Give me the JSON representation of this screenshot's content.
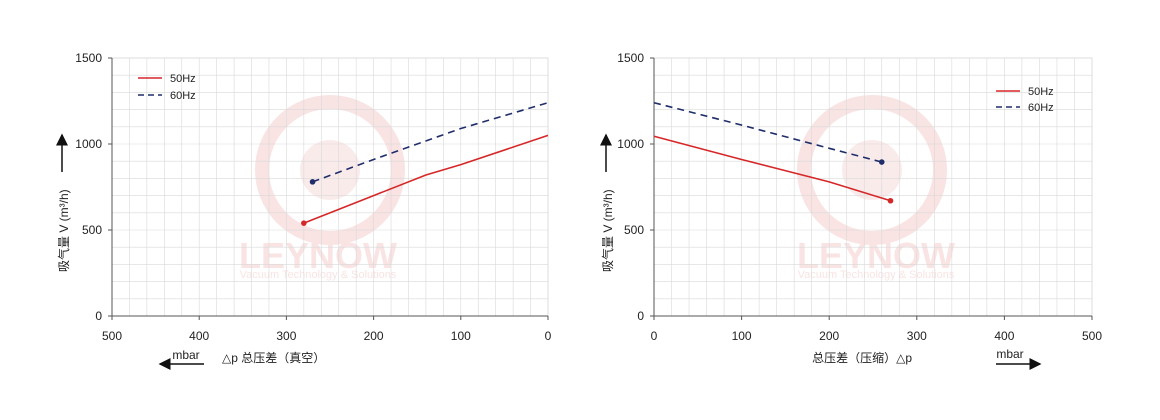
{
  "colors": {
    "50hz": "#d62728",
    "60hz": "#1f2d6b",
    "grid": "#d9d9d9",
    "axis": "#555555",
    "watermark": "#f4c9c9"
  },
  "watermark": {
    "brand": "LEYNOW",
    "tagline": "Vacuum Technology & Solutions"
  },
  "chart_data": [
    {
      "type": "line",
      "ylabel": "吸气量 V (m³/h)",
      "xlabel": "△p 总压差（真空）",
      "unit_label": "mbar",
      "xlim": [
        500,
        0
      ],
      "ylim": [
        0,
        1500
      ],
      "x_ticks": [
        "500",
        "400",
        "300",
        "200",
        "100",
        "0"
      ],
      "y_ticks": [
        "0",
        "500",
        "1000",
        "1500"
      ],
      "grid": true,
      "legend_position": "top-left",
      "series": [
        {
          "name": "50Hz",
          "style": "solid",
          "x": [
            280,
            240,
            200,
            140,
            100,
            0
          ],
          "y": [
            540,
            620,
            700,
            820,
            880,
            1050
          ]
        },
        {
          "name": "60Hz",
          "style": "dashed",
          "x": [
            270,
            200,
            100,
            0
          ],
          "y": [
            780,
            910,
            1090,
            1240
          ]
        }
      ]
    },
    {
      "type": "line",
      "ylabel": "吸气量 V (m³/h)",
      "xlabel": "总压差（压缩）△p",
      "unit_label": "mbar",
      "xlim": [
        0,
        500
      ],
      "ylim": [
        0,
        1500
      ],
      "x_ticks": [
        "0",
        "100",
        "200",
        "300",
        "400",
        "500"
      ],
      "y_ticks": [
        "0",
        "500",
        "1000",
        "1500"
      ],
      "grid": true,
      "legend_position": "top-right",
      "series": [
        {
          "name": "50Hz",
          "style": "solid",
          "x": [
            0,
            100,
            200,
            270
          ],
          "y": [
            1045,
            910,
            780,
            670
          ]
        },
        {
          "name": "60Hz",
          "style": "dashed",
          "x": [
            0,
            100,
            200,
            260
          ],
          "y": [
            1240,
            1110,
            975,
            895
          ]
        }
      ]
    }
  ]
}
